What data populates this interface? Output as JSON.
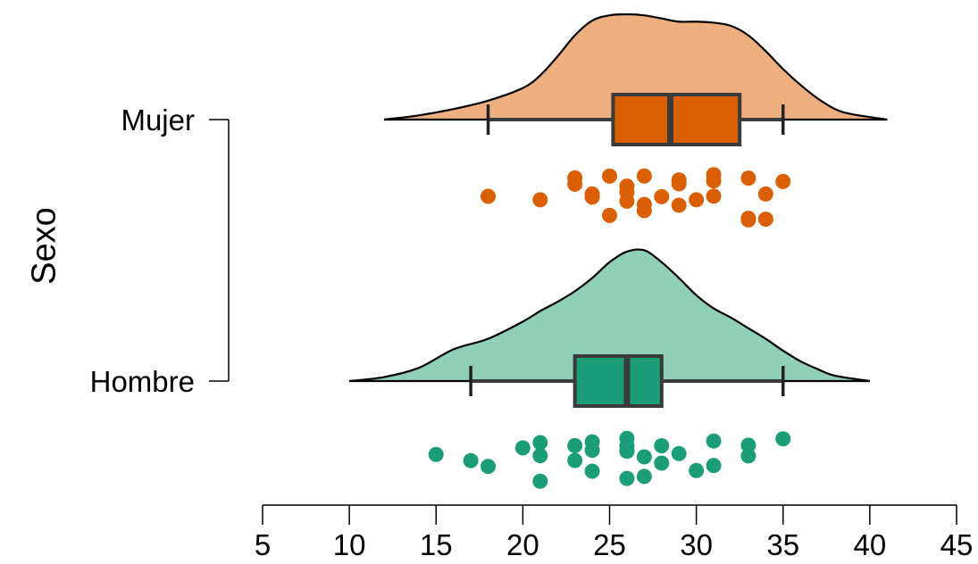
{
  "chart_data": {
    "type": "raincloud",
    "title": "",
    "xlabel": "",
    "ylabel": "Sexo",
    "xlim": [
      5,
      45
    ],
    "x_ticks": [
      5,
      10,
      15,
      20,
      25,
      30,
      35,
      40,
      45
    ],
    "grid": false,
    "legend": "none",
    "categories": [
      "Mujer",
      "Hombre"
    ],
    "groups": [
      {
        "name": "Mujer",
        "color_fill": "#EDAE80",
        "color_box": "#D95F02",
        "box": {
          "whisker_low": 18,
          "q1": 25.2,
          "median": 28.5,
          "q3": 32.5,
          "whisker_high": 35
        },
        "density_range": [
          12,
          41
        ],
        "density": [
          [
            12,
            0
          ],
          [
            14,
            0.04
          ],
          [
            16,
            0.1
          ],
          [
            18,
            0.18
          ],
          [
            20,
            0.3
          ],
          [
            21,
            0.42
          ],
          [
            22,
            0.6
          ],
          [
            23,
            0.8
          ],
          [
            24,
            0.94
          ],
          [
            25,
            0.99
          ],
          [
            26,
            1.0
          ],
          [
            27,
            0.99
          ],
          [
            28,
            0.96
          ],
          [
            29,
            0.93
          ],
          [
            30,
            0.93
          ],
          [
            31,
            0.92
          ],
          [
            32,
            0.89
          ],
          [
            33,
            0.8
          ],
          [
            34,
            0.65
          ],
          [
            35,
            0.48
          ],
          [
            36,
            0.33
          ],
          [
            37,
            0.2
          ],
          [
            38,
            0.1
          ],
          [
            39,
            0.05
          ],
          [
            41,
            0
          ]
        ],
        "points": [
          18,
          21,
          23,
          23,
          24,
          24,
          25,
          25,
          26,
          26,
          26,
          27,
          27,
          27,
          28,
          29,
          29,
          29,
          30,
          31,
          31,
          31,
          33,
          33,
          33,
          34,
          34,
          35
        ]
      },
      {
        "name": "Hombre",
        "color_fill": "#90CFB8",
        "color_box": "#1B9E77",
        "box": {
          "whisker_low": 17,
          "q1": 23,
          "median": 26,
          "q3": 28,
          "whisker_high": 35
        },
        "density_range": [
          10,
          40
        ],
        "density": [
          [
            10,
            0
          ],
          [
            12,
            0.03
          ],
          [
            14,
            0.1
          ],
          [
            16,
            0.24
          ],
          [
            18,
            0.32
          ],
          [
            20,
            0.45
          ],
          [
            21,
            0.53
          ],
          [
            22,
            0.6
          ],
          [
            23,
            0.68
          ],
          [
            24,
            0.78
          ],
          [
            25,
            0.9
          ],
          [
            26,
            0.98
          ],
          [
            27,
            0.99
          ],
          [
            28,
            0.9
          ],
          [
            29,
            0.78
          ],
          [
            30,
            0.65
          ],
          [
            31,
            0.55
          ],
          [
            32,
            0.48
          ],
          [
            33,
            0.4
          ],
          [
            34,
            0.32
          ],
          [
            35,
            0.23
          ],
          [
            36,
            0.15
          ],
          [
            37,
            0.09
          ],
          [
            38,
            0.04
          ],
          [
            40,
            0
          ]
        ],
        "points": [
          15,
          17,
          18,
          20,
          21,
          21,
          21,
          23,
          23,
          24,
          24,
          24,
          26,
          26,
          26,
          26,
          26,
          27,
          27,
          28,
          28,
          29,
          30,
          31,
          31,
          33,
          33,
          35
        ]
      }
    ],
    "colors": {
      "outline": "#000000",
      "box_border": "#3a3a3a",
      "axis": "#000000"
    }
  }
}
